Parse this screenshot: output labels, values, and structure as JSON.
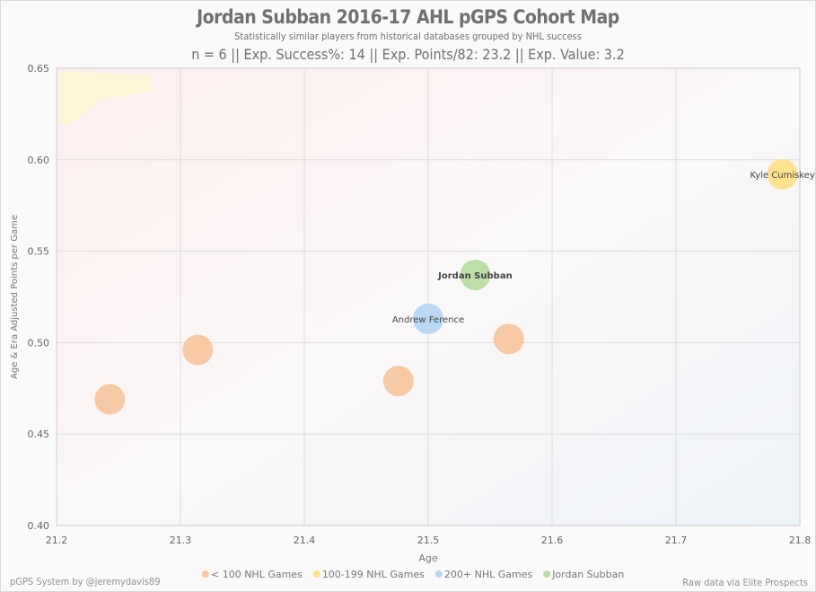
{
  "chart_data": {
    "type": "scatter",
    "title": "Jordan Subban 2016-17 AHL pGPS Cohort Map",
    "subtitle": "Statistically similar players from historical databases grouped by NHL success",
    "stats_line": "n = 6 || Exp. Success%: 14 || Exp. Points/82: 23.2 || Exp. Value: 3.2",
    "xlabel": "Age",
    "ylabel": "Age & Era Adjusted Points per Game",
    "xlim": [
      21.2,
      21.8
    ],
    "ylim": [
      0.4,
      0.65
    ],
    "xticks": [
      "21.2",
      "21.3",
      "21.4",
      "21.5",
      "21.6",
      "21.7",
      "21.8"
    ],
    "yticks": [
      "0.40",
      "0.45",
      "0.50",
      "0.55",
      "0.60",
      "0.65"
    ],
    "grid": true,
    "legend_placement": "bottom",
    "series": [
      {
        "name": "< 100 NHL Games",
        "color": "#f8c6a0",
        "points": [
          {
            "x": 21.243,
            "y": 0.469,
            "label": ""
          },
          {
            "x": 21.314,
            "y": 0.496,
            "label": ""
          },
          {
            "x": 21.476,
            "y": 0.479,
            "label": ""
          },
          {
            "x": 21.565,
            "y": 0.502,
            "label": ""
          }
        ]
      },
      {
        "name": "100-199 NHL Games",
        "color": "#fde28a",
        "points": [
          {
            "x": 21.786,
            "y": 0.592,
            "label": "Kyle Cumiskey"
          }
        ]
      },
      {
        "name": "200+ NHL Games",
        "color": "#b6d6f2",
        "points": [
          {
            "x": 21.5,
            "y": 0.513,
            "label": "Andrew Ference"
          }
        ]
      },
      {
        "name": "Jordan Subban",
        "color": "#b8dca2",
        "points": [
          {
            "x": 21.538,
            "y": 0.537,
            "label": "Jordan Subban"
          }
        ]
      }
    ]
  },
  "footer": {
    "left": "pGPS System by @jeremydavis89",
    "right": "Raw data via Elite Prospects"
  }
}
